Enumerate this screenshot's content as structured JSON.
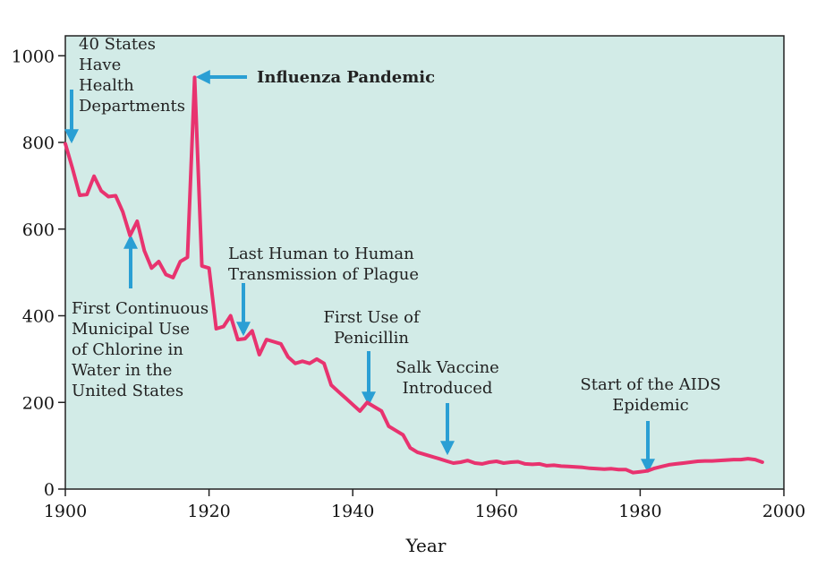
{
  "chart_data": {
    "type": "line",
    "title": "",
    "xlabel": "Year",
    "ylabel": "",
    "xlim": [
      1900,
      2000
    ],
    "ylim": [
      0,
      1000
    ],
    "x_ticks": [
      1900,
      1920,
      1940,
      1960,
      1980,
      2000
    ],
    "y_ticks": [
      0,
      200,
      400,
      600,
      800,
      1000
    ],
    "grid": false,
    "legend": "none",
    "background_color": "#d2ebe7",
    "line_color": "#e8336f",
    "arrow_color": "#2a9fd4",
    "series": [
      {
        "x": [
          1900,
          1901,
          1902,
          1903,
          1904,
          1905,
          1906,
          1907,
          1908,
          1909,
          1910,
          1911,
          1912,
          1913,
          1914,
          1915,
          1916,
          1917,
          1918,
          1919,
          1920,
          1921,
          1922,
          1923,
          1924,
          1925,
          1926,
          1927,
          1928,
          1929,
          1930,
          1931,
          1932,
          1933,
          1934,
          1935,
          1936,
          1937,
          1938,
          1939,
          1940,
          1941,
          1942,
          1943,
          1944,
          1945,
          1946,
          1947,
          1948,
          1949,
          1950,
          1951,
          1952,
          1953,
          1954,
          1955,
          1956,
          1957,
          1958,
          1959,
          1960,
          1961,
          1962,
          1963,
          1964,
          1965,
          1966,
          1967,
          1968,
          1969,
          1970,
          1971,
          1972,
          1973,
          1974,
          1975,
          1976,
          1977,
          1978,
          1979,
          1980,
          1981,
          1982,
          1983,
          1984,
          1985,
          1986,
          1987,
          1988,
          1989,
          1990,
          1991,
          1992,
          1993,
          1994,
          1995,
          1996,
          1997
        ],
        "values": [
          797,
          740,
          678,
          680,
          722,
          688,
          675,
          677,
          640,
          585,
          618,
          550,
          510,
          525,
          495,
          488,
          525,
          535,
          950,
          515,
          510,
          370,
          375,
          400,
          345,
          347,
          365,
          310,
          345,
          340,
          335,
          305,
          290,
          295,
          290,
          300,
          290,
          240,
          225,
          210,
          195,
          180,
          200,
          190,
          180,
          145,
          135,
          125,
          95,
          85,
          80,
          75,
          70,
          65,
          60,
          62,
          66,
          60,
          58,
          62,
          64,
          60,
          62,
          63,
          58,
          57,
          58,
          54,
          55,
          53,
          52,
          51,
          50,
          48,
          47,
          46,
          47,
          45,
          45,
          38,
          40,
          42,
          48,
          52,
          56,
          58,
          60,
          62,
          64,
          65,
          65,
          66,
          67,
          68,
          68,
          70,
          68,
          62
        ]
      }
    ],
    "annotations": [
      {
        "lines": [
          "40 States",
          "Have",
          "Health",
          "Departments"
        ],
        "year": 1900,
        "arrow": "down"
      },
      {
        "lines": [
          "Influenza Pandemic"
        ],
        "year": 1918,
        "arrow": "left",
        "bold": true
      },
      {
        "lines": [
          "First Continuous",
          "Municipal Use",
          "of Chlorine in",
          "Water in the",
          "United States"
        ],
        "year": 1909,
        "arrow": "up"
      },
      {
        "lines": [
          "Last Human to Human",
          "Transmission of Plague"
        ],
        "year": 1925,
        "arrow": "down"
      },
      {
        "lines": [
          "First Use of",
          "Penicillin"
        ],
        "year": 1942,
        "arrow": "down"
      },
      {
        "lines": [
          "Salk Vaccine",
          "Introduced"
        ],
        "year": 1953,
        "arrow": "down"
      },
      {
        "lines": [
          "Start of the AIDS",
          "Epidemic"
        ],
        "year": 1981,
        "arrow": "down"
      }
    ]
  }
}
